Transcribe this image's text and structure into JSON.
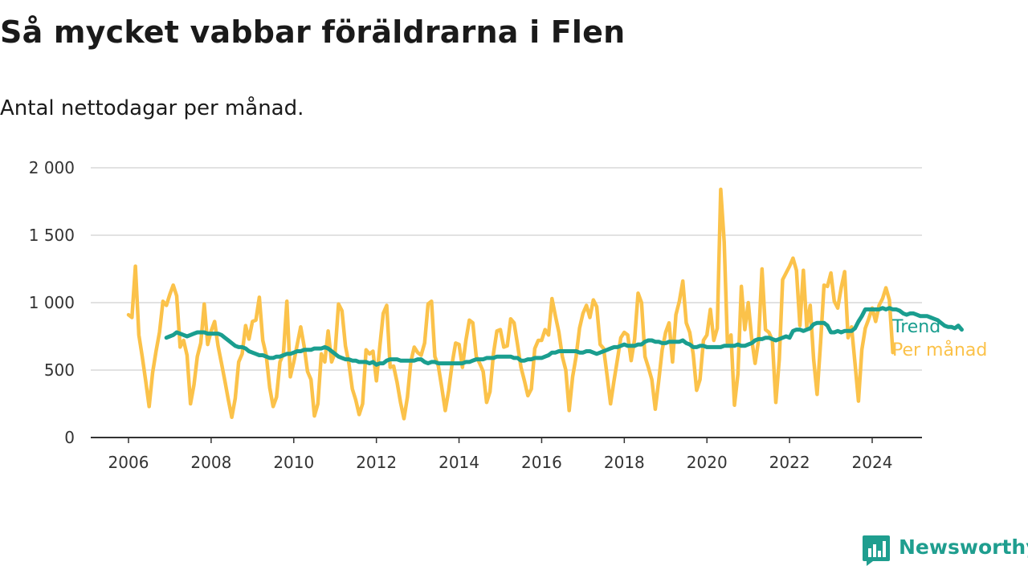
{
  "title": "Så mycket vabbar föräldrarna i Flen",
  "subtitle": "Antal nettodagar per månad.",
  "brand": {
    "name": "Newsworthy",
    "icon": "newsworthy-logo-icon"
  },
  "colors": {
    "trend": "#1a9e8f",
    "monthly": "#fbc24a",
    "grid": "#d9d9d9",
    "axis": "#333333"
  },
  "chart_data": {
    "type": "line",
    "x_type": "date",
    "ylim": [
      0,
      2000
    ],
    "y_ticks": [
      0,
      500,
      1000,
      1500,
      2000
    ],
    "y_tick_labels": [
      "0",
      "500",
      "1 000",
      "1 500",
      "2 000"
    ],
    "x_ticks": [
      "2006-01",
      "2008-01",
      "2010-01",
      "2012-01",
      "2014-01",
      "2016-01",
      "2018-01",
      "2020-01",
      "2022-01",
      "2024-01"
    ],
    "x_tick_labels": [
      "2006",
      "2008",
      "2010",
      "2012",
      "2014",
      "2016",
      "2018",
      "2020",
      "2022",
      "2024"
    ],
    "grid": true,
    "legend": "end-of-line labels",
    "series": [
      {
        "name": "Per månad",
        "start": "2006-01",
        "values": [
          910,
          890,
          1270,
          760,
          600,
          420,
          230,
          480,
          640,
          780,
          1010,
          980,
          1060,
          1130,
          1050,
          670,
          720,
          610,
          250,
          390,
          600,
          700,
          990,
          690,
          790,
          860,
          680,
          550,
          420,
          280,
          150,
          290,
          560,
          620,
          830,
          730,
          860,
          870,
          1040,
          720,
          610,
          370,
          230,
          300,
          560,
          620,
          1010,
          450,
          560,
          690,
          820,
          680,
          490,
          430,
          160,
          250,
          620,
          560,
          790,
          560,
          630,
          990,
          940,
          680,
          550,
          360,
          280,
          170,
          250,
          650,
          620,
          640,
          420,
          680,
          920,
          980,
          520,
          530,
          410,
          260,
          140,
          300,
          560,
          670,
          630,
          610,
          700,
          990,
          1010,
          600,
          530,
          370,
          200,
          350,
          550,
          700,
          690,
          520,
          720,
          870,
          850,
          600,
          550,
          490,
          260,
          340,
          620,
          790,
          800,
          670,
          680,
          880,
          850,
          690,
          520,
          420,
          310,
          360,
          660,
          720,
          720,
          800,
          760,
          1030,
          900,
          780,
          600,
          500,
          200,
          450,
          600,
          810,
          920,
          980,
          890,
          1020,
          970,
          690,
          660,
          460,
          250,
          420,
          580,
          740,
          780,
          760,
          570,
          730,
          1070,
          1000,
          600,
          520,
          430,
          210,
          420,
          650,
          780,
          850,
          560,
          910,
          1010,
          1160,
          850,
          780,
          620,
          350,
          430,
          720,
          760,
          950,
          720,
          810,
          1840,
          1450,
          680,
          760,
          240,
          470,
          1120,
          800,
          1000,
          730,
          550,
          720,
          1250,
          800,
          780,
          720,
          260,
          580,
          1170,
          1220,
          1270,
          1330,
          1240,
          830,
          1240,
          820,
          980,
          580,
          320,
          700,
          1130,
          1120,
          1220,
          1010,
          960,
          1110,
          1230,
          740,
          820,
          550,
          270,
          650,
          810,
          880,
          960,
          860,
          980,
          1030,
          1110,
          1020,
          630
        ]
      },
      {
        "name": "Trend",
        "start": "2006-12",
        "values": [
          740,
          750,
          760,
          780,
          770,
          760,
          750,
          760,
          770,
          780,
          780,
          780,
          770,
          770,
          770,
          770,
          760,
          740,
          720,
          700,
          680,
          670,
          670,
          660,
          640,
          630,
          620,
          610,
          610,
          600,
          590,
          590,
          600,
          600,
          610,
          620,
          620,
          630,
          640,
          640,
          650,
          650,
          650,
          660,
          660,
          660,
          670,
          660,
          640,
          620,
          600,
          590,
          580,
          580,
          570,
          570,
          560,
          560,
          560,
          550,
          560,
          540,
          550,
          550,
          570,
          580,
          580,
          580,
          570,
          570,
          570,
          570,
          570,
          580,
          580,
          560,
          550,
          560,
          560,
          550,
          550,
          550,
          550,
          550,
          550,
          550,
          550,
          560,
          560,
          570,
          580,
          580,
          580,
          590,
          590,
          590,
          600,
          600,
          600,
          600,
          600,
          590,
          590,
          570,
          570,
          580,
          580,
          590,
          590,
          590,
          600,
          610,
          630,
          630,
          640,
          640,
          640,
          640,
          640,
          640,
          630,
          630,
          640,
          640,
          630,
          620,
          630,
          640,
          650,
          660,
          670,
          670,
          680,
          690,
          680,
          680,
          680,
          690,
          690,
          710,
          720,
          720,
          710,
          710,
          700,
          700,
          710,
          710,
          710,
          710,
          720,
          700,
          690,
          670,
          670,
          680,
          680,
          670,
          670,
          670,
          670,
          670,
          680,
          680,
          680,
          680,
          690,
          680,
          680,
          690,
          700,
          720,
          730,
          730,
          740,
          740,
          730,
          720,
          730,
          740,
          750,
          740,
          790,
          800,
          800,
          790,
          800,
          810,
          840,
          850,
          850,
          850,
          830,
          780,
          780,
          790,
          780,
          790,
          790,
          790,
          810,
          860,
          900,
          950,
          950,
          950,
          950,
          950,
          960,
          950,
          960,
          950,
          950,
          940,
          920,
          910,
          920,
          920,
          910,
          900,
          900,
          900,
          890,
          880,
          870,
          850,
          830,
          820,
          820,
          810,
          830,
          800
        ]
      }
    ]
  }
}
